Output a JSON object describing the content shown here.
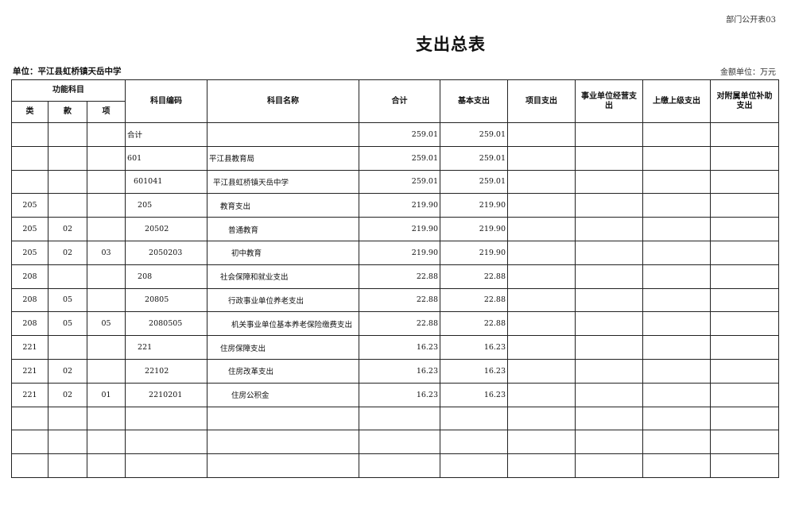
{
  "header": {
    "form_code": "部门公开表03",
    "title": "支出总表",
    "unit_label": "单位：平江县虹桥镇天岳中学",
    "amount_unit": "金额单位：万元"
  },
  "table": {
    "columns": {
      "function_subject": "功能科目",
      "lei": "类",
      "kuan": "款",
      "xiang": "项",
      "code": "科目编码",
      "name": "科目名称",
      "total": "合计",
      "basic": "基本支出",
      "project": "项目支出",
      "business": "事业单位经营支出",
      "upper": "上缴上级支出",
      "subsidy": "对附属单位补助支出"
    },
    "rows": [
      {
        "lei": "",
        "kuan": "",
        "xiang": "",
        "code": "合计",
        "name": "",
        "total": "259.01",
        "basic": "259.01",
        "project": "",
        "business": "",
        "upper": "",
        "subsidy": ""
      },
      {
        "lei": "",
        "kuan": "",
        "xiang": "",
        "code": "601",
        "name": "平江县教育局",
        "total": "259.01",
        "basic": "259.01",
        "project": "",
        "business": "",
        "upper": "",
        "subsidy": ""
      },
      {
        "lei": "",
        "kuan": "",
        "xiang": "",
        "code": "601041",
        "name": "平江县虹桥镇天岳中学",
        "total": "259.01",
        "basic": "259.01",
        "project": "",
        "business": "",
        "upper": "",
        "subsidy": ""
      },
      {
        "lei": "205",
        "kuan": "",
        "xiang": "",
        "code": "205",
        "name": "教育支出",
        "total": "219.90",
        "basic": "219.90",
        "project": "",
        "business": "",
        "upper": "",
        "subsidy": ""
      },
      {
        "lei": "205",
        "kuan": "02",
        "xiang": "",
        "code": "20502",
        "name": "普通教育",
        "total": "219.90",
        "basic": "219.90",
        "project": "",
        "business": "",
        "upper": "",
        "subsidy": ""
      },
      {
        "lei": "205",
        "kuan": "02",
        "xiang": "03",
        "code": "2050203",
        "name": "初中教育",
        "total": "219.90",
        "basic": "219.90",
        "project": "",
        "business": "",
        "upper": "",
        "subsidy": ""
      },
      {
        "lei": "208",
        "kuan": "",
        "xiang": "",
        "code": "208",
        "name": "社会保障和就业支出",
        "total": "22.88",
        "basic": "22.88",
        "project": "",
        "business": "",
        "upper": "",
        "subsidy": ""
      },
      {
        "lei": "208",
        "kuan": "05",
        "xiang": "",
        "code": "20805",
        "name": "行政事业单位养老支出",
        "total": "22.88",
        "basic": "22.88",
        "project": "",
        "business": "",
        "upper": "",
        "subsidy": ""
      },
      {
        "lei": "208",
        "kuan": "05",
        "xiang": "05",
        "code": "2080505",
        "name": "机关事业单位基本养老保险缴费支出",
        "total": "22.88",
        "basic": "22.88",
        "project": "",
        "business": "",
        "upper": "",
        "subsidy": ""
      },
      {
        "lei": "221",
        "kuan": "",
        "xiang": "",
        "code": "221",
        "name": "住房保障支出",
        "total": "16.23",
        "basic": "16.23",
        "project": "",
        "business": "",
        "upper": "",
        "subsidy": ""
      },
      {
        "lei": "221",
        "kuan": "02",
        "xiang": "",
        "code": "22102",
        "name": "住房改革支出",
        "total": "16.23",
        "basic": "16.23",
        "project": "",
        "business": "",
        "upper": "",
        "subsidy": ""
      },
      {
        "lei": "221",
        "kuan": "02",
        "xiang": "01",
        "code": "2210201",
        "name": "住房公积金",
        "total": "16.23",
        "basic": "16.23",
        "project": "",
        "business": "",
        "upper": "",
        "subsidy": ""
      },
      {
        "lei": "",
        "kuan": "",
        "xiang": "",
        "code": "",
        "name": "",
        "total": "",
        "basic": "",
        "project": "",
        "business": "",
        "upper": "",
        "subsidy": ""
      },
      {
        "lei": "",
        "kuan": "",
        "xiang": "",
        "code": "",
        "name": "",
        "total": "",
        "basic": "",
        "project": "",
        "business": "",
        "upper": "",
        "subsidy": ""
      },
      {
        "lei": "",
        "kuan": "",
        "xiang": "",
        "code": "",
        "name": "",
        "total": "",
        "basic": "",
        "project": "",
        "business": "",
        "upper": "",
        "subsidy": ""
      }
    ]
  }
}
